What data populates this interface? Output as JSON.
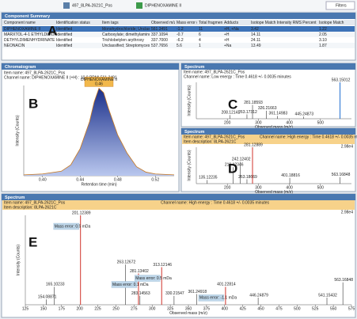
{
  "toolbar": {
    "sample": "497_8LPA-2621C_Pos",
    "component": "DIPHENOXAMINE II",
    "filters": "Filters"
  },
  "summary": {
    "title": "Component Summary",
    "marker": "A",
    "columns": [
      "Component name",
      "Identification status",
      "Item tags",
      "Observed m/z",
      "Mass error (mDa)",
      "Total fragments found",
      "Adducts",
      "Isotope Match Intensity RMS Percent",
      "Isotope Match"
    ],
    "rows": [
      [
        "DIPHENOXAMINE II",
        "Identified",
        "Monohydrochloride; Unclassified",
        "561.3491",
        "-1.2",
        "11",
        "+H, +Na",
        "3.42",
        "1.22"
      ],
      [
        "MARXTOL-4-1 ETHYLDIMOXAMINE",
        "Identified",
        "Carboxylate; dimethylamino",
        "337.1094",
        "-0.7",
        "6",
        "+H",
        "14.11",
        "2.05"
      ],
      [
        "DETHYLDIMENHYDRINATE",
        "Identified",
        "Trichlobetylen arythroxy",
        "337.7000",
        "-6.2",
        "4",
        "+H",
        "24.11",
        "3.10"
      ],
      [
        "NEONACIN",
        "Identified",
        "Unclassified; Streptomyces Nation",
        "537.7656",
        "5.6",
        "1",
        "+Na",
        "13.49",
        "1.87"
      ]
    ]
  },
  "chromatogram": {
    "title": "Chromatogram",
    "marker": "B",
    "item_name": "Item name: 497_8LPA-2621C_Pos",
    "channel": "Channel name: DIPHENOXAMINE II (+H) : 10.0 PPM) 561.3491",
    "tag": "DIPHENOXAMINE II",
    "tag_time": "0.46",
    "x": [
      0.38,
      0.4,
      0.42,
      0.43,
      0.44,
      0.45,
      0.455,
      0.46,
      0.465,
      0.47,
      0.48,
      0.49,
      0.5,
      0.51,
      0.52,
      0.54
    ],
    "y": [
      0.01,
      0.02,
      0.05,
      0.12,
      0.3,
      0.6,
      0.82,
      0.97,
      0.92,
      0.75,
      0.45,
      0.25,
      0.1,
      0.04,
      0.02,
      0.01
    ],
    "xlim": [
      0.38,
      0.54
    ],
    "ylim": [
      0,
      1
    ],
    "xticks": [
      {
        "value": 0.4,
        "label": "0.40"
      },
      0.44,
      0.48,
      0.52
    ],
    "xlabel": "Retention time (min)",
    "ylabel": "Intensity (Counts)"
  },
  "spectra": [
    {
      "title": "Spectrum",
      "marker": "C",
      "item_name": "Item name: 497_8LPA-2621C_Pos",
      "channel": "Channel name: Low energy : Time 0.4618 +/- 0.0035 minutes",
      "highlight": false,
      "xlim": [
        100,
        600
      ],
      "ylim": [
        0,
        1
      ],
      "xticks": [
        200,
        300,
        400,
        500
      ],
      "xlabel": "Observed mass (m/z)",
      "ylabel": "Intensity (Counts)",
      "peaks": [
        {
          "mz": 208.12141,
          "intensity": 0.1,
          "color": "#333"
        },
        {
          "mz": 263.17312,
          "intensity": 0.12,
          "color": "#333"
        },
        {
          "mz": 281.18593,
          "intensity": 0.38,
          "color": "#333"
        },
        {
          "mz": 326.21663,
          "intensity": 0.22,
          "color": "#333"
        },
        {
          "mz": 361.14983,
          "intensity": 0.08,
          "color": "#333"
        },
        {
          "mz": 445.24873,
          "intensity": 0.06,
          "color": "#333"
        },
        {
          "mz": 563.15012,
          "intensity": 1,
          "color": "#1f6fd1"
        }
      ]
    },
    {
      "title": "Spectrum",
      "marker": "D",
      "item_name": "Item name: 497_8LPA-2621C_Pos",
      "channel": "Channel name: High energy : Time 0.4618 +/- 0.0035 minutes",
      "description": "Item description: 8LPA-2621C",
      "max_label": "2.98e4",
      "highlight": true,
      "xlim": [
        100,
        600
      ],
      "ylim": [
        0,
        1
      ],
      "xticks": [
        200,
        300,
        400,
        500
      ],
      "xlabel": "Observed mass (m/z)",
      "ylabel": "Intensity (Counts)",
      "peaks": [
        {
          "mz": 135.12235,
          "intensity": 0.1,
          "color": "#333"
        },
        {
          "mz": 219.12346,
          "intensity": 0.45,
          "color": "#333"
        },
        {
          "mz": 242.12402,
          "intensity": 0.6,
          "color": "#333"
        },
        {
          "mz": 263.18669,
          "intensity": 0.12,
          "color": "#333"
        },
        {
          "mz": 281.12889,
          "intensity": 1,
          "color": "#d0332b"
        },
        {
          "mz": 401.18816,
          "intensity": 0.16,
          "color": "#333"
        },
        {
          "mz": 563.16848,
          "intensity": 0.18,
          "color": "#333"
        }
      ]
    },
    {
      "title": "Spectrum",
      "marker": "E",
      "item_name": "Item name: 497_8LPA-2621C_Pos",
      "channel": "Channel name: High energy : Time 0.4618 +/- 0.0035 minutes",
      "description": "Item description: 8LPA-2621C",
      "max_label": "2.98e4",
      "highlight": true,
      "xlim": [
        125,
        575
      ],
      "ylim": [
        0,
        1
      ],
      "xticks": [
        125,
        150,
        175,
        200,
        225,
        250,
        275,
        300,
        325,
        350,
        375,
        400,
        425,
        450,
        475,
        500,
        525,
        550,
        575
      ],
      "xlabel": "Observed mass (m/z)",
      "ylabel": "Intensity (Counts)",
      "peaks": [
        {
          "mz": 154.08871,
          "intensity": 0.06,
          "color": "#333"
        },
        {
          "mz": 165.10233,
          "intensity": 0.2,
          "color": "#333"
        },
        {
          "mz": 201.12389,
          "intensity": 1,
          "color": "#d0332b",
          "note": "Mass error: 0.5 mDa"
        },
        {
          "mz": 263.12672,
          "intensity": 0.45,
          "color": "#333"
        },
        {
          "mz": 281.13402,
          "intensity": 0.35,
          "color": "#d0332b",
          "note": "Mass error: 0.1 mDa"
        },
        {
          "mz": 283.14563,
          "intensity": 0.1,
          "color": "#333"
        },
        {
          "mz": 313.12146,
          "intensity": 0.42,
          "color": "#d0332b",
          "note": "Mass error: 0.5 mDa"
        },
        {
          "mz": 330.21547,
          "intensity": 0.1,
          "color": "#333"
        },
        {
          "mz": 361.24918,
          "intensity": 0.12,
          "color": "#333"
        },
        {
          "mz": 401.22814,
          "intensity": 0.2,
          "color": "#d0332b",
          "note": "Mass error: -1.1 mDa"
        },
        {
          "mz": 446.24879,
          "intensity": 0.08,
          "color": "#333"
        },
        {
          "mz": 541.15432,
          "intensity": 0.08,
          "color": "#333"
        },
        {
          "mz": 563.16848,
          "intensity": 0.25,
          "color": "#333"
        }
      ]
    }
  ]
}
